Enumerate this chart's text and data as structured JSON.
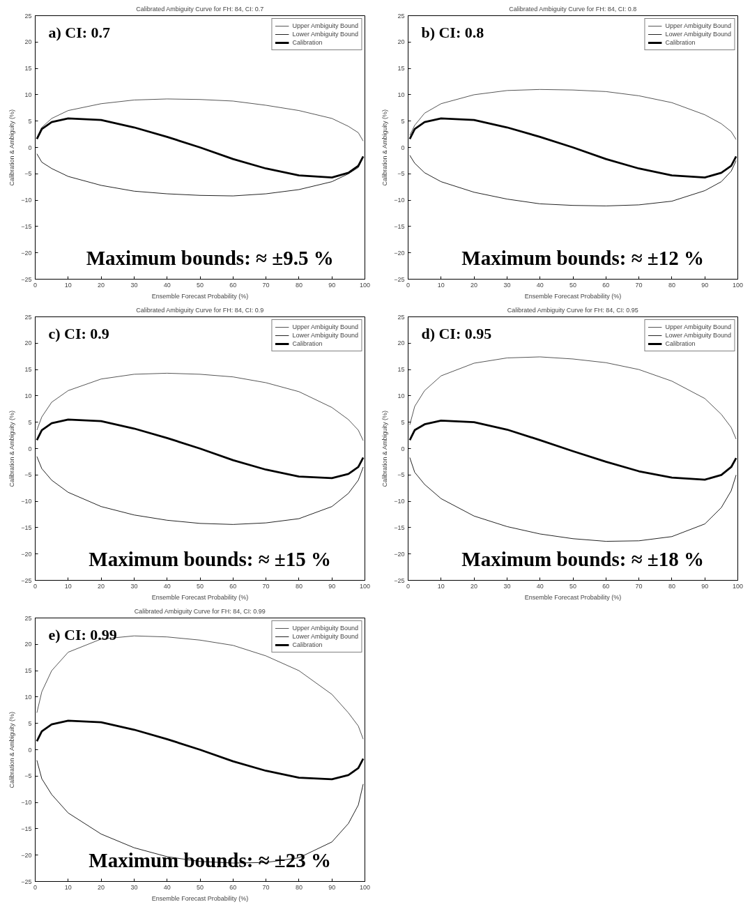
{
  "chart_data": [
    {
      "type": "line",
      "title": "Calibrated Ambiguity Curve for FH: 84, CI: 0.7",
      "xlabel": "Ensemble Forecast Probability (%)",
      "ylabel": "Calibration & Ambiguity (%)",
      "annotations": [
        "a) CI: 0.7",
        "Maximum bounds: ≈ ±9.5 %"
      ],
      "x": [
        0.5,
        2,
        5,
        10,
        20,
        30,
        40,
        50,
        60,
        70,
        80,
        90,
        95,
        98,
        99.5
      ],
      "xlim": [
        0,
        100
      ],
      "ylim": [
        -25,
        25
      ],
      "xticks": [
        0,
        10,
        20,
        30,
        40,
        50,
        60,
        70,
        80,
        90,
        100
      ],
      "yticks": [
        -25,
        -20,
        -15,
        -10,
        -5,
        0,
        5,
        10,
        15,
        20,
        25
      ],
      "legend": "top right",
      "series": [
        {
          "name": "Upper Ambiguity Bound",
          "color": "#555555",
          "values": [
            1.8,
            3.8,
            5.5,
            7,
            8.3,
            9,
            9.2,
            9.1,
            8.8,
            8,
            7,
            5.5,
            4,
            2.8,
            1.2
          ]
        },
        {
          "name": "Lower Ambiguity Bound",
          "color": "#222222",
          "values": [
            -1.2,
            -2.8,
            -4,
            -5.5,
            -7.2,
            -8.3,
            -8.8,
            -9.1,
            -9.2,
            -8.8,
            -8,
            -6.5,
            -5,
            -3.8,
            -1.8
          ]
        },
        {
          "name": "Calibration",
          "color": "#000000",
          "values": [
            1.6,
            3.5,
            4.8,
            5.5,
            5.2,
            3.8,
            2,
            0,
            -2.2,
            -4,
            -5.3,
            -5.7,
            -4.8,
            -3.5,
            -1.7
          ]
        }
      ]
    },
    {
      "type": "line",
      "title": "Calibrated Ambiguity Curve for FH: 84, CI: 0.8",
      "xlabel": "Ensemble Forecast Probability (%)",
      "ylabel": "Calibration & Ambiguity (%)",
      "annotations": [
        "b) CI: 0.8",
        "Maximum bounds: ≈ ±12 %"
      ],
      "x": [
        0.5,
        2,
        5,
        10,
        20,
        30,
        40,
        50,
        60,
        70,
        80,
        90,
        95,
        98,
        99.5
      ],
      "xlim": [
        0,
        100
      ],
      "ylim": [
        -25,
        25
      ],
      "xticks": [
        0,
        10,
        20,
        30,
        40,
        50,
        60,
        70,
        80,
        90,
        100
      ],
      "yticks": [
        -25,
        -20,
        -15,
        -10,
        -5,
        0,
        5,
        10,
        15,
        20,
        25
      ],
      "legend": "top right",
      "series": [
        {
          "name": "Upper Ambiguity Bound",
          "color": "#555555",
          "values": [
            2.3,
            4.2,
            6.5,
            8.3,
            10,
            10.8,
            11,
            10.9,
            10.6,
            9.8,
            8.5,
            6.2,
            4.5,
            3,
            1.5
          ]
        },
        {
          "name": "Lower Ambiguity Bound",
          "color": "#222222",
          "values": [
            -1.5,
            -3,
            -4.8,
            -6.5,
            -8.5,
            -9.8,
            -10.7,
            -11,
            -11.1,
            -10.9,
            -10.2,
            -8.2,
            -6.5,
            -4.5,
            -2.5
          ]
        },
        {
          "name": "Calibration",
          "color": "#000000",
          "values": [
            1.6,
            3.5,
            4.8,
            5.5,
            5.2,
            3.8,
            2,
            0,
            -2.2,
            -4,
            -5.3,
            -5.7,
            -4.8,
            -3.5,
            -1.7
          ]
        }
      ]
    },
    {
      "type": "line",
      "title": "Calibrated Ambiguity Curve for FH: 84, CI: 0.9",
      "xlabel": "Ensemble Forecast Probability (%)",
      "ylabel": "Calibration & Ambiguity (%)",
      "annotations": [
        "c) CI: 0.9",
        "Maximum bounds: ≈ ±15 %"
      ],
      "x": [
        0.5,
        2,
        5,
        10,
        20,
        30,
        40,
        50,
        60,
        70,
        80,
        90,
        95,
        98,
        99.5
      ],
      "xlim": [
        0,
        100
      ],
      "ylim": [
        -25,
        25
      ],
      "xticks": [
        0,
        10,
        20,
        30,
        40,
        50,
        60,
        70,
        80,
        90,
        100
      ],
      "yticks": [
        -25,
        -20,
        -15,
        -10,
        -5,
        0,
        5,
        10,
        15,
        20,
        25
      ],
      "legend": "top right",
      "series": [
        {
          "name": "Upper Ambiguity Bound",
          "color": "#555555",
          "values": [
            3.5,
            6,
            8.8,
            11,
            13.2,
            14.1,
            14.3,
            14.1,
            13.6,
            12.5,
            10.8,
            7.8,
            5.5,
            3.5,
            1.5
          ]
        },
        {
          "name": "Lower Ambiguity Bound",
          "color": "#222222",
          "values": [
            -1.5,
            -3.8,
            -6,
            -8.3,
            -11,
            -12.6,
            -13.6,
            -14.2,
            -14.4,
            -14.1,
            -13.3,
            -11,
            -8.5,
            -6,
            -3.5
          ]
        },
        {
          "name": "Calibration",
          "color": "#000000",
          "values": [
            1.6,
            3.5,
            4.8,
            5.5,
            5.2,
            3.8,
            2,
            0,
            -2.2,
            -4,
            -5.3,
            -5.6,
            -4.8,
            -3.5,
            -1.7
          ]
        }
      ]
    },
    {
      "type": "line",
      "title": "Calibrated Ambiguity Curve for FH: 84, CI: 0.95",
      "xlabel": "Ensemble Forecast Probability (%)",
      "ylabel": "Calibration & Ambiguity (%)",
      "annotations": [
        "d) CI: 0.95",
        "Maximum bounds: ≈ ±18 %"
      ],
      "x": [
        0.5,
        2,
        5,
        10,
        20,
        30,
        40,
        50,
        60,
        70,
        80,
        90,
        95,
        98,
        99.5
      ],
      "xlim": [
        0,
        100
      ],
      "ylim": [
        -25,
        25
      ],
      "xticks": [
        0,
        10,
        20,
        30,
        40,
        50,
        60,
        70,
        80,
        90,
        100
      ],
      "yticks": [
        -25,
        -20,
        -15,
        -10,
        -5,
        0,
        5,
        10,
        15,
        20,
        25
      ],
      "legend": "top right",
      "series": [
        {
          "name": "Upper Ambiguity Bound",
          "color": "#555555",
          "values": [
            4.5,
            8,
            11,
            13.8,
            16.2,
            17.2,
            17.4,
            17,
            16.3,
            15,
            12.8,
            9.5,
            6.5,
            4,
            1.8
          ]
        },
        {
          "name": "Lower Ambiguity Bound",
          "color": "#222222",
          "values": [
            -1.7,
            -4.5,
            -6.8,
            -9.5,
            -12.8,
            -14.8,
            -16.2,
            -17.1,
            -17.6,
            -17.5,
            -16.7,
            -14.3,
            -11.2,
            -8,
            -5
          ]
        },
        {
          "name": "Calibration",
          "color": "#000000",
          "values": [
            1.6,
            3.5,
            4.6,
            5.3,
            5,
            3.6,
            1.6,
            -0.5,
            -2.5,
            -4.3,
            -5.5,
            -5.9,
            -5,
            -3.5,
            -1.8
          ]
        }
      ]
    },
    {
      "type": "line",
      "title": "Calibrated Ambiguity Curve for FH: 84, CI: 0.99",
      "xlabel": "Ensemble Forecast Probability (%)",
      "ylabel": "Calibration & Ambiguity (%)",
      "annotations": [
        "e) CI: 0.99",
        "Maximum bounds: ≈ ±23 %"
      ],
      "x": [
        0.5,
        2,
        5,
        10,
        20,
        30,
        40,
        50,
        60,
        70,
        80,
        90,
        95,
        98,
        99.5
      ],
      "xlim": [
        0,
        100
      ],
      "ylim": [
        -25,
        25
      ],
      "xticks": [
        0,
        10,
        20,
        30,
        40,
        50,
        60,
        70,
        80,
        90,
        100
      ],
      "yticks": [
        -25,
        -20,
        -15,
        -10,
        -5,
        0,
        5,
        10,
        15,
        20,
        25
      ],
      "legend": "top right",
      "series": [
        {
          "name": "Upper Ambiguity Bound",
          "color": "#555555",
          "values": [
            7,
            11,
            15,
            18.5,
            21,
            21.6,
            21.4,
            20.8,
            19.8,
            17.8,
            15,
            10.5,
            7,
            4.5,
            2
          ]
        },
        {
          "name": "Lower Ambiguity Bound",
          "color": "#222222",
          "values": [
            -2,
            -5.5,
            -8.5,
            -12,
            -16,
            -18.6,
            -20.3,
            -21.2,
            -21.5,
            -21.4,
            -20.5,
            -17.5,
            -14,
            -10.5,
            -6.5
          ]
        },
        {
          "name": "Calibration",
          "color": "#000000",
          "values": [
            1.6,
            3.5,
            4.8,
            5.5,
            5.2,
            3.8,
            2,
            0,
            -2.2,
            -4,
            -5.3,
            -5.6,
            -4.8,
            -3.5,
            -1.7
          ]
        }
      ]
    }
  ]
}
